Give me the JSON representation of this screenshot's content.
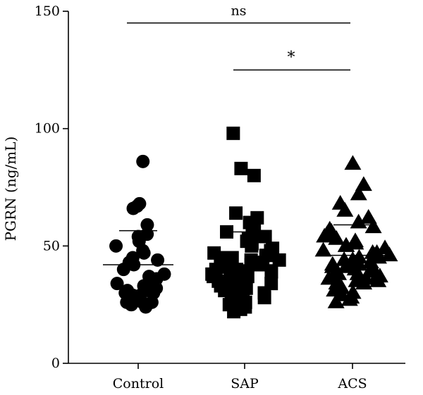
{
  "chart_data": {
    "type": "scatter",
    "chart_style": "dot plot with mean and SD bars",
    "ylabel": "PGRN (ng/mL)",
    "ylim": [
      0,
      150
    ],
    "yticks": [
      0,
      50,
      100,
      150
    ],
    "categories": [
      "Control",
      "SAP",
      "ACS"
    ],
    "grid": false,
    "series": [
      {
        "category": "Control",
        "marker": "circle",
        "mean": 42,
        "sd_upper": 56.5,
        "values": [
          86,
          68,
          67,
          66,
          59,
          55,
          54,
          53,
          52,
          50,
          48,
          47,
          45,
          44,
          43,
          42,
          40,
          38,
          37,
          36,
          35,
          34,
          33,
          32,
          31,
          31,
          30,
          30,
          30,
          29,
          29,
          28,
          27,
          27,
          26,
          26,
          26,
          25,
          25,
          24
        ]
      },
      {
        "category": "SAP",
        "marker": "square",
        "mean": 42,
        "sd_upper": 56,
        "values": [
          98,
          83,
          80,
          64,
          62,
          60,
          58,
          56,
          55,
          54,
          53,
          52,
          51,
          50,
          49,
          48,
          47,
          46,
          46,
          45,
          45,
          44,
          44,
          43,
          43,
          42,
          42,
          41,
          41,
          40,
          40,
          39,
          39,
          38,
          38,
          37,
          37,
          36,
          36,
          35,
          35,
          34,
          34,
          33,
          33,
          32,
          32,
          31,
          31,
          30,
          30,
          29,
          29,
          28,
          28,
          27,
          27,
          26,
          25,
          24,
          23,
          22
        ]
      },
      {
        "category": "ACS",
        "marker": "triangle",
        "mean": 46,
        "sd_upper": 59,
        "values": [
          85,
          76,
          72,
          68,
          65,
          62,
          60,
          58,
          57,
          56,
          55,
          54,
          53,
          52,
          51,
          50,
          50,
          49,
          48,
          47,
          47,
          46,
          46,
          45,
          45,
          44,
          44,
          43,
          43,
          42,
          42,
          41,
          41,
          40,
          40,
          39,
          39,
          38,
          38,
          37,
          37,
          36,
          36,
          35,
          35,
          34,
          34,
          33,
          33,
          32,
          31,
          30,
          29,
          28,
          27,
          26
        ]
      }
    ],
    "comparisons": [
      {
        "from": "Control",
        "to": "ACS",
        "y": 145,
        "label": "ns"
      },
      {
        "from": "SAP",
        "to": "ACS",
        "y": 125,
        "label": "*"
      }
    ]
  }
}
